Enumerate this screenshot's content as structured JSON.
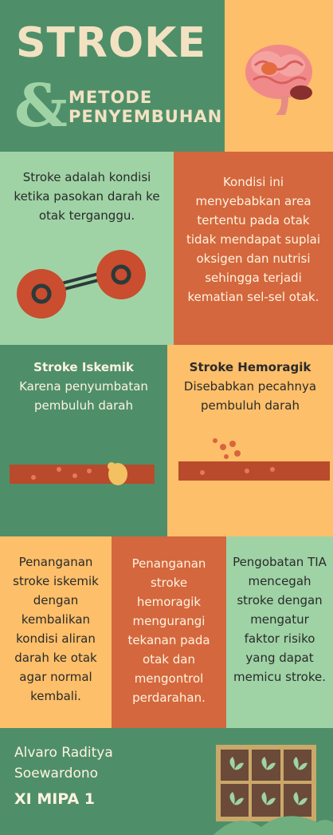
{
  "header": {
    "title": "STROKE",
    "ampersand": "&",
    "subtitle_line1": "METODE",
    "subtitle_line2": "PENYEMBUHAN"
  },
  "definition": {
    "text": "Stroke adalah kondisi ketika pasokan darah ke otak terganggu.",
    "effect": "Kondisi ini menyebabkan area tertentu pada otak tidak mendapat suplai oksigen dan nutrisi sehingga terjadi kematian sel-sel otak."
  },
  "types": {
    "ischemic": {
      "title": "Stroke Iskemik",
      "desc": "Karena penyumbatan pembuluh darah"
    },
    "hemorrhagic": {
      "title": "Stroke Hemoragik",
      "desc": "Disebabkan pecahnya pembuluh darah"
    }
  },
  "treatments": [
    {
      "text": "Penanganan stroke iskemik dengan kembalikan kondisi aliran darah ke otak agar normal kembali."
    },
    {
      "text": "Penanganan stroke hemoragik mengurangi tekanan pada otak dan mengontrol perdarahan."
    },
    {
      "text": "Pengobatan TIA mencegah stroke dengan mengatur faktor risiko yang dapat memicu stroke."
    }
  ],
  "footer": {
    "author_line1": "Alvaro Raditya",
    "author_line2": "Soewardono",
    "class": "XI MIPA 1"
  },
  "colors": {
    "green": "#4e8f69",
    "light_green": "#9fd3a5",
    "orange": "#d4673d",
    "yellow": "#fdbf6a",
    "cream": "#f3e2c2"
  },
  "icons": [
    "brain-icon",
    "blood-cells-icon",
    "blocked-vessel-icon",
    "ruptured-vessel-icon",
    "plant-tray-icon"
  ]
}
